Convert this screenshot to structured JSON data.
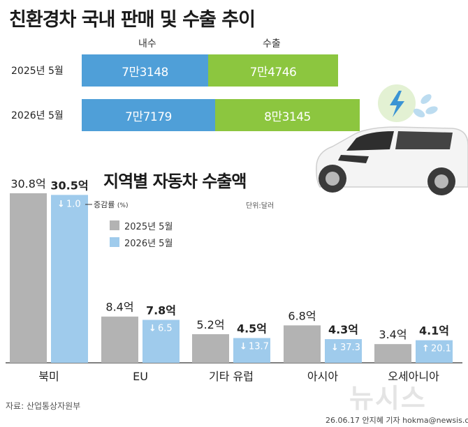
{
  "title": "친환경차 국내 판매 및 수출 추이",
  "top_chart": {
    "columns": {
      "domestic": "내수",
      "export": "수출"
    },
    "rows": [
      {
        "label": "2025년 5월",
        "domestic_label": "7만3148",
        "export_label": "7만4746",
        "domestic": 73148,
        "export": 74746
      },
      {
        "label": "2026년 5월",
        "domestic_label": "7만7179",
        "export_label": "8만3145",
        "domestic": 77179,
        "export": 83145
      }
    ],
    "colors": {
      "domestic": "#4f9fd8",
      "export": "#8cc63f"
    }
  },
  "chart_data": {
    "type": "bar",
    "title": "지역별 자동차 수출액",
    "unit_label": "단위:달러",
    "rate_label": "증감률",
    "rate_unit": "(%)",
    "categories": [
      "북미",
      "EU",
      "기타 유럽",
      "아시아",
      "오세아니아"
    ],
    "series": [
      {
        "name": "2025년 5월",
        "color": "#b3b3b3",
        "values": [
          30.8,
          8.4,
          5.2,
          6.8,
          3.4
        ],
        "labels": [
          "30.8억",
          "8.4억",
          "5.2억",
          "6.8억",
          "3.4억"
        ]
      },
      {
        "name": "2026년 5월",
        "color": "#9fcbec",
        "values": [
          30.5,
          7.8,
          4.5,
          4.3,
          4.1
        ],
        "labels": [
          "30.5억",
          "7.8억",
          "4.5억",
          "4.3억",
          "4.1억"
        ]
      }
    ],
    "change": [
      {
        "dir": "down",
        "value": "1.0"
      },
      {
        "dir": "down",
        "value": "6.5"
      },
      {
        "dir": "down",
        "value": "13.7"
      },
      {
        "dir": "down",
        "value": "37.3"
      },
      {
        "dir": "up",
        "value": "20.1"
      }
    ]
  },
  "footer": {
    "source": "자료: 산업통상자원부",
    "credit": "26.06.17 안지혜 기자 hokma@newsis.com",
    "logo": "뉴시스"
  }
}
